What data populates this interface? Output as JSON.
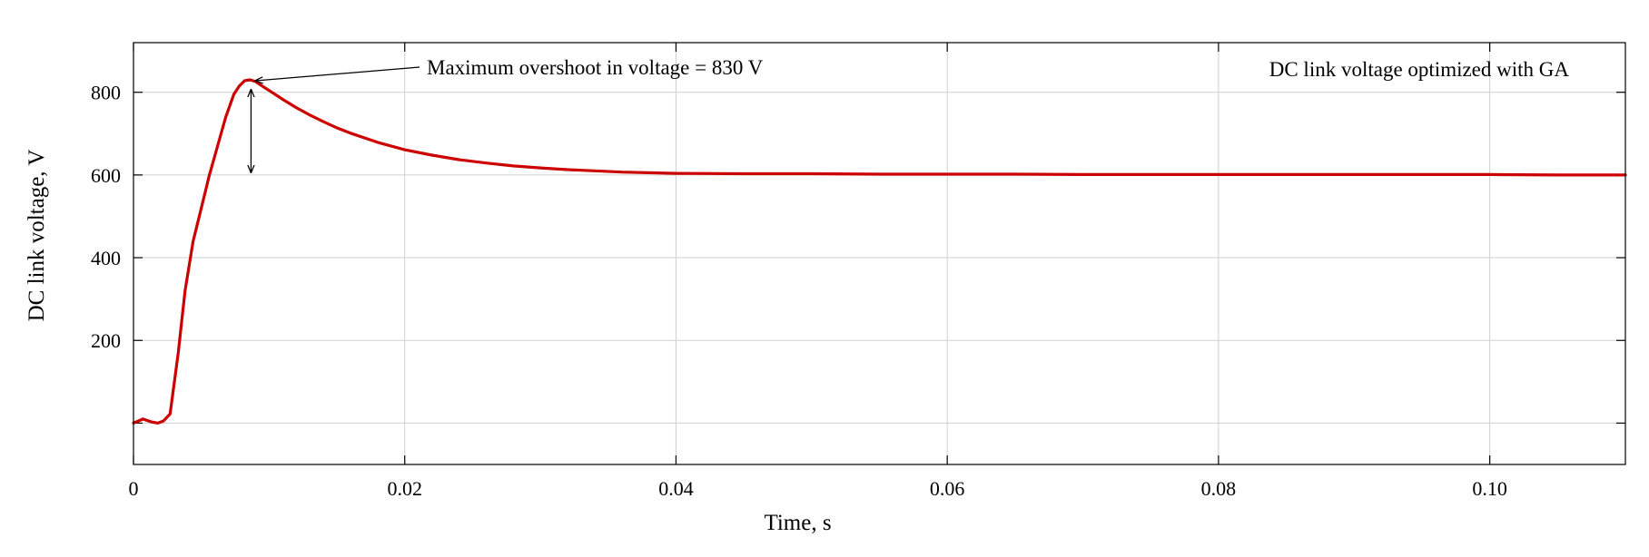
{
  "chart_data": {
    "type": "line",
    "title": "",
    "xlabel": "Time, s",
    "ylabel": "DC link voltage, V",
    "xlim": [
      0,
      0.11
    ],
    "ylim": [
      -100,
      920
    ],
    "grid": true,
    "x_ticks": [
      0,
      0.02,
      0.04,
      0.06,
      0.08,
      0.1
    ],
    "x_tick_labels": [
      "0",
      "0.02",
      "0.04",
      "0.06",
      "0.08",
      "0.10"
    ],
    "y_ticks": [
      0,
      200,
      400,
      600,
      800
    ],
    "y_tick_labels": [
      "",
      "200",
      "400",
      "600",
      "800"
    ],
    "series": [
      {
        "color": "#cc0000",
        "x": [
          0,
          0.0007,
          0.0013,
          0.0018,
          0.0022,
          0.0027,
          0.0033,
          0.0038,
          0.0044,
          0.005,
          0.0056,
          0.0062,
          0.0068,
          0.0074,
          0.0078,
          0.0082,
          0.0086,
          0.009,
          0.0095,
          0.0102,
          0.011,
          0.012,
          0.013,
          0.014,
          0.015,
          0.016,
          0.018,
          0.02,
          0.022,
          0.024,
          0.026,
          0.028,
          0.03,
          0.032,
          0.034,
          0.036,
          0.04,
          0.045,
          0.05,
          0.055,
          0.06,
          0.065,
          0.07,
          0.075,
          0.08,
          0.085,
          0.09,
          0.095,
          0.1,
          0.105,
          0.11
        ],
        "y": [
          0,
          10,
          3,
          0,
          5,
          22,
          170,
          320,
          440,
          520,
          600,
          670,
          740,
          795,
          815,
          828,
          830,
          826,
          815,
          800,
          783,
          763,
          745,
          729,
          714,
          701,
          679,
          661,
          648,
          637,
          629,
          622,
          617,
          613,
          610,
          607,
          604,
          603,
          603,
          602,
          602,
          602,
          601,
          601,
          601,
          601,
          601,
          601,
          601,
          600,
          600
        ]
      }
    ],
    "annotations": [
      {
        "text": "Maximum overshoot in voltage = 830 V",
        "point": [
          0.0086,
          830
        ]
      },
      {
        "text": "DC link voltage optimized with GA"
      }
    ]
  }
}
